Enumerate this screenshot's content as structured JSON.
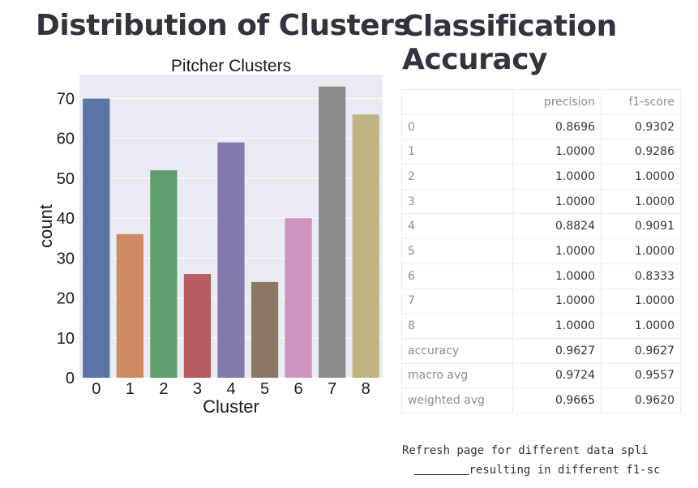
{
  "left_heading": "Distribution of Clusters",
  "right_heading": "Classification Accuracy",
  "chart_data": {
    "type": "bar",
    "title": "Pitcher Clusters",
    "xlabel": "Cluster",
    "ylabel": "count",
    "categories": [
      "0",
      "1",
      "2",
      "3",
      "4",
      "5",
      "6",
      "7",
      "8"
    ],
    "values": [
      70,
      36,
      52,
      26,
      59,
      24,
      40,
      73,
      66
    ],
    "ylim": [
      0,
      76
    ],
    "yticks": [
      0,
      10,
      20,
      30,
      40,
      50,
      60,
      70
    ],
    "grid": true,
    "colors": [
      "#5875a4",
      "#cc8963",
      "#5f9e6e",
      "#b55d60",
      "#857aab",
      "#8d7866",
      "#d095bf",
      "#8c8c8c",
      "#c1b37f"
    ],
    "background": "#eaeaf2"
  },
  "table": {
    "columns": [
      "",
      "precision",
      "f1-score"
    ],
    "rows": [
      {
        "label": "0",
        "precision": "0.8696",
        "f1": "0.9302"
      },
      {
        "label": "1",
        "precision": "1.0000",
        "f1": "0.9286"
      },
      {
        "label": "2",
        "precision": "1.0000",
        "f1": "1.0000"
      },
      {
        "label": "3",
        "precision": "1.0000",
        "f1": "1.0000"
      },
      {
        "label": "4",
        "precision": "0.8824",
        "f1": "0.9091"
      },
      {
        "label": "5",
        "precision": "1.0000",
        "f1": "1.0000"
      },
      {
        "label": "6",
        "precision": "1.0000",
        "f1": "0.8333"
      },
      {
        "label": "7",
        "precision": "1.0000",
        "f1": "1.0000"
      },
      {
        "label": "8",
        "precision": "1.0000",
        "f1": "1.0000"
      },
      {
        "label": "accuracy",
        "precision": "0.9627",
        "f1": "0.9627"
      },
      {
        "label": "macro avg",
        "precision": "0.9724",
        "f1": "0.9557"
      },
      {
        "label": "weighted avg",
        "precision": "0.9665",
        "f1": "0.9620"
      }
    ]
  },
  "footnote": {
    "line1": "Refresh page for different data spli",
    "line2": "resulting in different f1-sc"
  }
}
